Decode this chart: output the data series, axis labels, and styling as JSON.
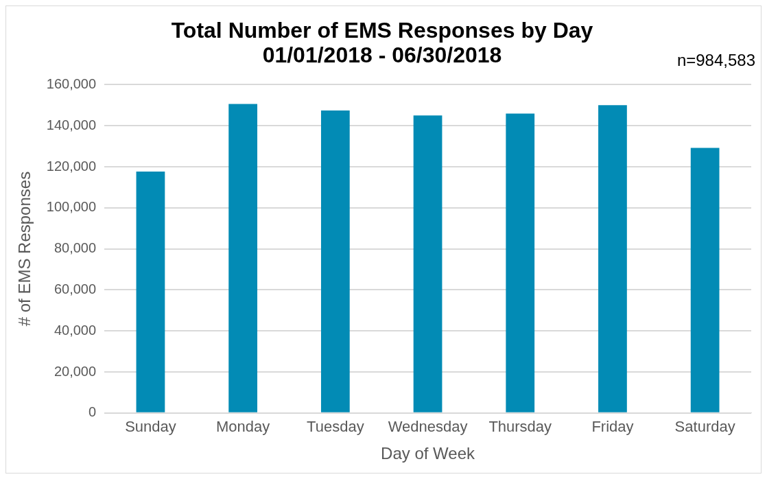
{
  "chart_data": {
    "type": "bar",
    "title": "Total Number of EMS Responses by Day\n01/01/2018 - 06/30/2018",
    "xlabel": "Day of Week",
    "ylabel": "# of EMS Responses",
    "categories": [
      "Sunday",
      "Monday",
      "Tuesday",
      "Wednesday",
      "Thursday",
      "Friday",
      "Saturday"
    ],
    "values": [
      117700,
      150600,
      147400,
      145000,
      145900,
      150000,
      129200
    ],
    "color": "#028bb5",
    "ylim": [
      0,
      160000
    ],
    "yticks": [
      {
        "value": 0,
        "label": "0"
      },
      {
        "value": 20000,
        "label": "20,000"
      },
      {
        "value": 40000,
        "label": "40,000"
      },
      {
        "value": 60000,
        "label": "60,000"
      },
      {
        "value": 80000,
        "label": "80,000"
      },
      {
        "value": 100000,
        "label": "100,000"
      },
      {
        "value": 120000,
        "label": "120,000"
      },
      {
        "value": 140000,
        "label": "140,000"
      },
      {
        "value": 160000,
        "label": "160,000"
      }
    ],
    "grid": "y",
    "legend": false,
    "annotations": [
      "n=984,583"
    ]
  }
}
